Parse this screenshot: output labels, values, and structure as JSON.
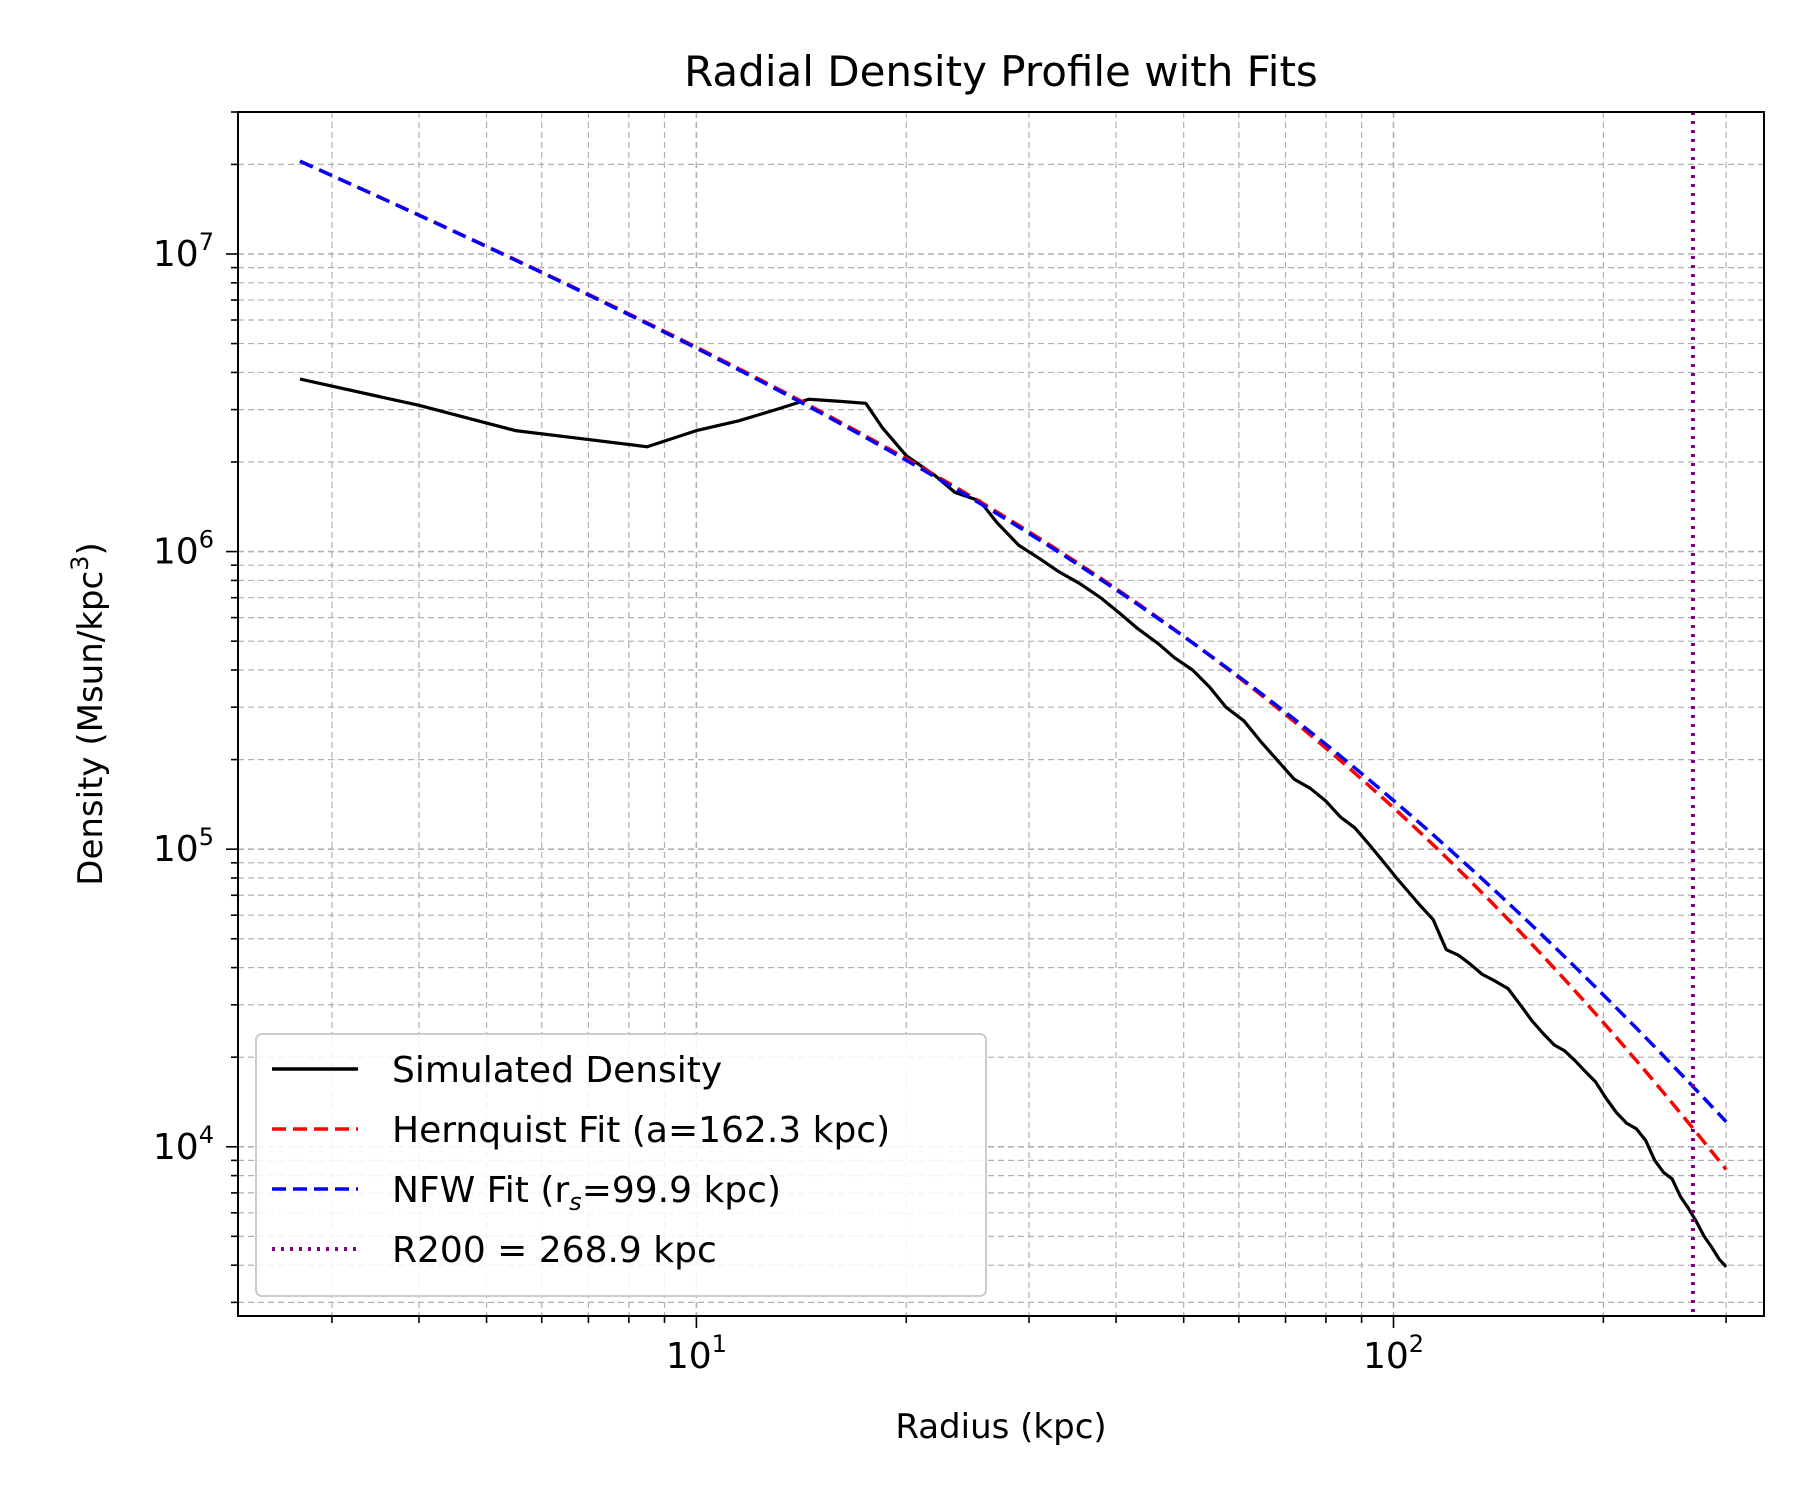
{
  "chart_data": {
    "type": "line",
    "title": "Radial Density Profile with Fits",
    "xlabel": "Radius (kpc)",
    "ylabel": "Density (Msun/kpc",
    "ylabel_sup": "3",
    "ylabel_close": ")",
    "xscale": "log",
    "yscale": "log",
    "xlim": [
      2.2,
      340
    ],
    "ylim": [
      2700,
      30000000
    ],
    "x_tick_labels": [
      {
        "value": 10,
        "base": "10",
        "exp": "1"
      },
      {
        "value": 100,
        "base": "10",
        "exp": "2"
      }
    ],
    "y_tick_labels": [
      {
        "value": 10000,
        "base": "10",
        "exp": "4"
      },
      {
        "value": 100000,
        "base": "10",
        "exp": "5"
      },
      {
        "value": 1000000,
        "base": "10",
        "exp": "6"
      },
      {
        "value": 10000000,
        "base": "10",
        "exp": "7"
      }
    ],
    "grid": "both",
    "legend_position": "lower-left",
    "series": [
      {
        "name": "Simulated Density",
        "color": "#000000",
        "style": "solid",
        "x": [
          2.7,
          4.0,
          5.5,
          6.8,
          8.5,
          10.0,
          11.5,
          13.0,
          14.5,
          16.0,
          17.5,
          18.5,
          20.0,
          22.0,
          23.5,
          25.5,
          27.0,
          29.0,
          31.0,
          33.0,
          35.5,
          38.0,
          40.5,
          43.0,
          46.0,
          48.5,
          51.5,
          54.5,
          57.5,
          61.0,
          64.5,
          68.0,
          72.0,
          76.0,
          80.0,
          84.0,
          88.0,
          92.5,
          97.0,
          101.0,
          105.0,
          109.0,
          114.0,
          119.0,
          124.0,
          129.0,
          134.0,
          140.0,
          146.0,
          152.0,
          158.0,
          164.0,
          170.0,
          176.0,
          182.0,
          188.0,
          195.0,
          202.0,
          209.0,
          216.0,
          223.0,
          230.0,
          237.0,
          244.0,
          251.0,
          258.0,
          265.0,
          272.0,
          279.0,
          286.0,
          293.0,
          300.0
        ],
        "y": [
          3800000,
          3100000,
          2550000,
          2400000,
          2250000,
          2550000,
          2750000,
          3000000,
          3250000,
          3200000,
          3150000,
          2600000,
          2100000,
          1800000,
          1580000,
          1480000,
          1250000,
          1050000,
          950000,
          860000,
          780000,
          700000,
          620000,
          550000,
          490000,
          440000,
          400000,
          350000,
          300000,
          270000,
          230000,
          200000,
          172000,
          160000,
          145000,
          128000,
          118000,
          103000,
          90000,
          80000,
          72000,
          65000,
          58000,
          46000,
          44000,
          41000,
          38000,
          36000,
          34000,
          30000,
          26500,
          24000,
          22000,
          21000,
          19500,
          18000,
          16500,
          14500,
          13000,
          12000,
          11500,
          10500,
          9000,
          8200,
          7800,
          6800,
          6200,
          5600,
          5000,
          4600,
          4200,
          3950
        ]
      },
      {
        "name": "Hernquist Fit (a=162.3 kpc)",
        "legend_prefix": "Hernquist Fit (a=162.3 kpc)",
        "color": "#ff0000",
        "style": "dashed",
        "model": "hernquist",
        "a": 162.3,
        "rho_at_2_7": 20500000,
        "x_range": [
          2.7,
          300
        ]
      },
      {
        "name": "NFW Fit (rs=99.9 kpc)",
        "legend_prefix": "NFW Fit (r",
        "legend_sub": "s",
        "legend_suffix": "=99.9 kpc)",
        "color": "#0000ff",
        "style": "dashed",
        "model": "nfw",
        "rs": 99.9,
        "rho_at_2_7": 20500000,
        "x_range": [
          2.7,
          300
        ]
      },
      {
        "name": "R200 = 268.9 kpc",
        "color": "#800080",
        "style": "dotted",
        "vline_x": 268.9
      }
    ]
  }
}
